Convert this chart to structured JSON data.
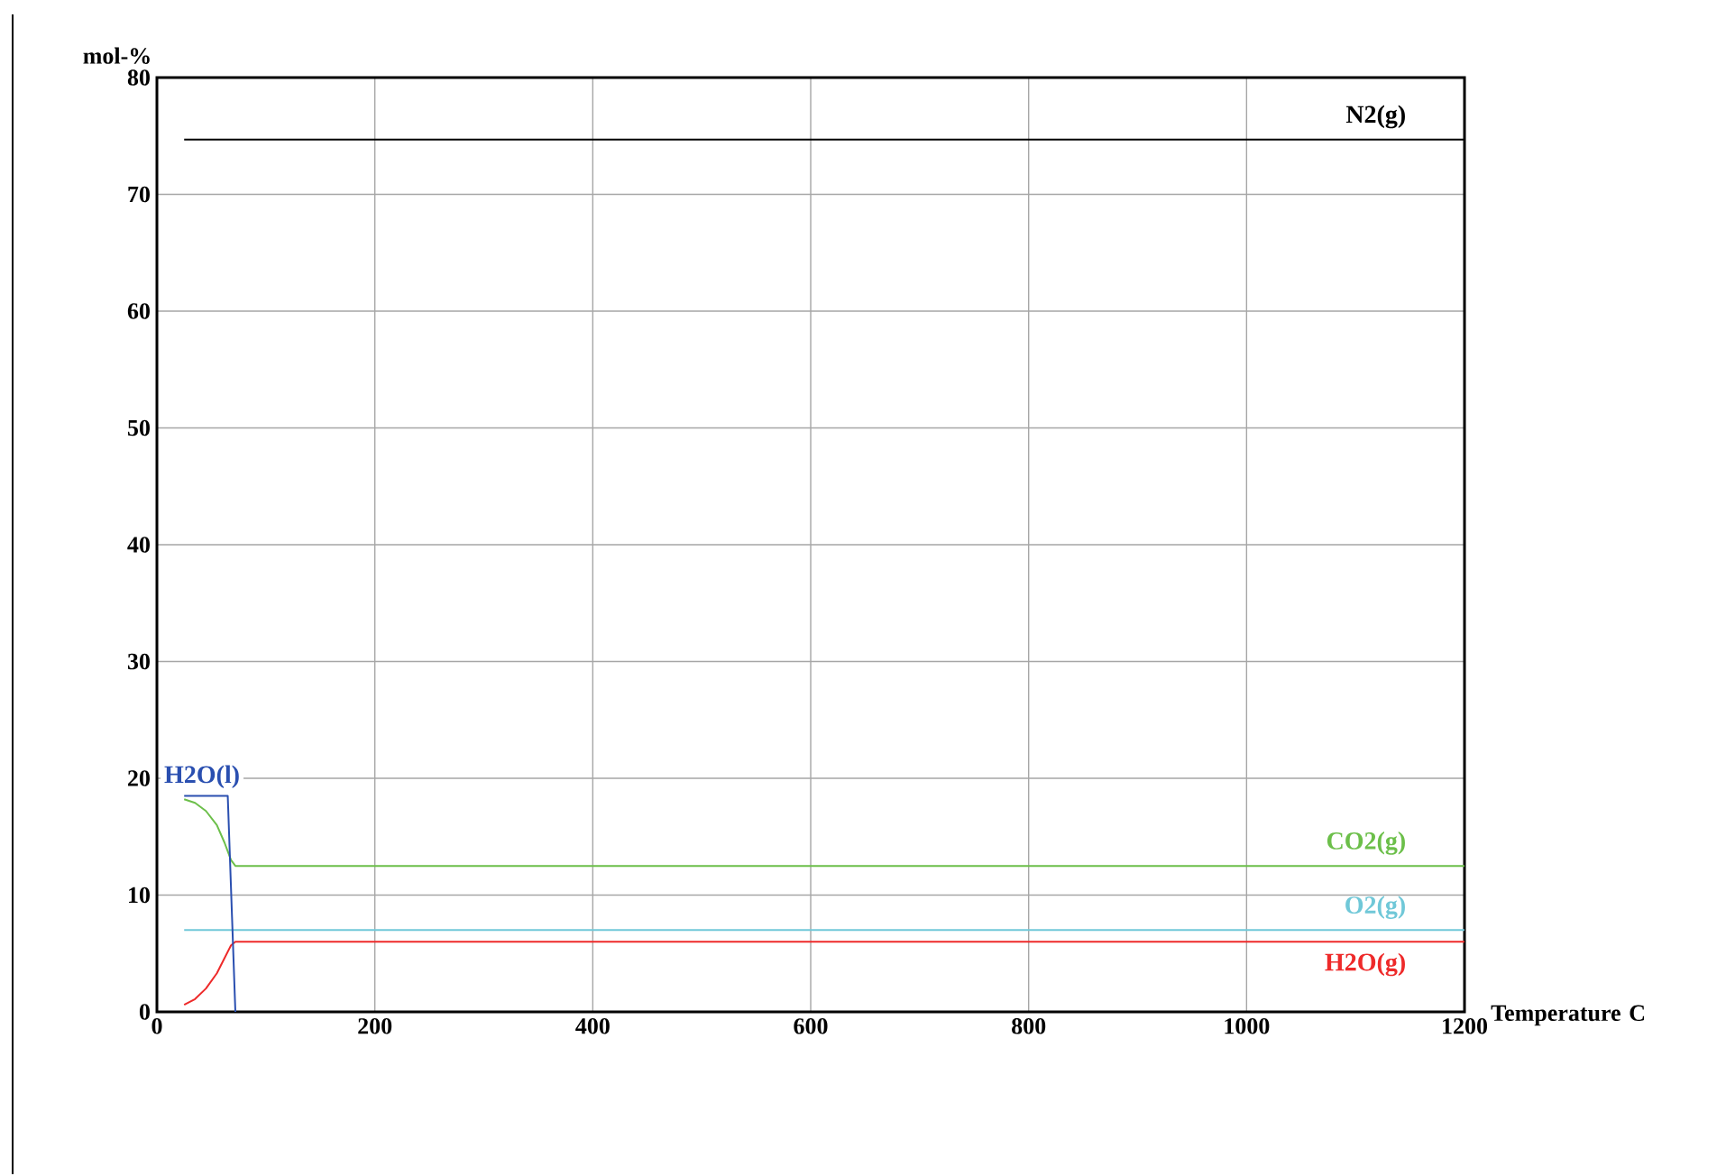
{
  "chart_data": {
    "type": "line",
    "xlabel": "Temperature C",
    "ylabel": "mol-%",
    "xlim": [
      0,
      1200
    ],
    "ylim": [
      0,
      80
    ],
    "xticks": [
      0,
      200,
      400,
      600,
      800,
      1000,
      1200
    ],
    "yticks": [
      0,
      10,
      20,
      30,
      40,
      50,
      60,
      70,
      80
    ],
    "grid": true,
    "marker": "none",
    "line_style": "solid",
    "series": [
      {
        "name": "N2(g)",
        "color": "#000000",
        "x": [
          25,
          1200
        ],
        "values": [
          74.7,
          74.7
        ]
      },
      {
        "name": "CO2(g)",
        "color": "#6cbf4a",
        "x": [
          25,
          35,
          45,
          55,
          62,
          68,
          72,
          1200
        ],
        "values": [
          18.2,
          17.9,
          17.2,
          16.0,
          14.5,
          13.0,
          12.5,
          12.5
        ]
      },
      {
        "name": "O2(g)",
        "color": "#70c8d8",
        "x": [
          25,
          1200
        ],
        "values": [
          7.0,
          7.0
        ]
      },
      {
        "name": "H2O(g)",
        "color": "#ee2a2a",
        "x": [
          25,
          35,
          45,
          55,
          62,
          68,
          72,
          1200
        ],
        "values": [
          0.6,
          1.1,
          2.0,
          3.3,
          4.6,
          5.7,
          6.0,
          6.0
        ]
      },
      {
        "name": "H2O(l)",
        "color": "#2a4fb0",
        "x": [
          25,
          65,
          72
        ],
        "values": [
          18.5,
          18.5,
          0
        ]
      }
    ]
  }
}
